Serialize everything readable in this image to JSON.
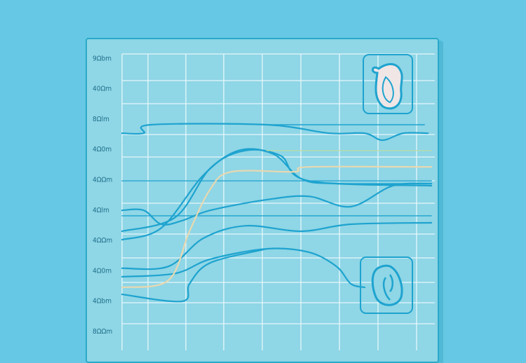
{
  "chart_data": {
    "type": "line",
    "title": "",
    "xlabel": "",
    "ylabel": "",
    "y_tick_labels": [
      "9Ωbm",
      "40Ωm",
      "8Ωlm",
      "4Ω0m",
      "4ΩΩm",
      "4Ωlm",
      "4ΩΩm",
      "4Ω0m",
      "4Ωbm",
      "8ΩΩm"
    ],
    "xlim": [
      0,
      8
    ],
    "ylim": [
      0,
      9
    ],
    "grid": true,
    "colors": {
      "background": "#66c8e4",
      "panel": "#8fd6e6",
      "grid": "#e6f7fb",
      "line": "#1ea3cf",
      "beige": "#e8d8b0",
      "green": "#b8dca8"
    },
    "series": [
      {
        "color": "#1ea3cf",
        "x": [
          0,
          0.56,
          0.75,
          3.75,
          5.38,
          6.29,
          6.75,
          7.29,
          7.93
        ],
        "y": [
          6.51,
          6.51,
          6.79,
          6.79,
          6.51,
          6.51,
          6.28,
          6.51,
          6.51
        ]
      },
      {
        "color": "#1ea3cf",
        "x": [
          3.75,
          7.84
        ],
        "y": [
          6.79,
          6.79
        ]
      },
      {
        "color": "#1ea3cf",
        "x": [
          0,
          1.02,
          2.11,
          3.02,
          3.93,
          4.65,
          5.56,
          8.02
        ],
        "y": [
          3.0,
          3.39,
          5.13,
          5.94,
          5.82,
          5.01,
          4.85,
          4.85
        ]
      },
      {
        "color": "#1ea3cf",
        "x": [
          0,
          1.38,
          2.29,
          3.2,
          4.11,
          4.84,
          8.02
        ],
        "y": [
          3.28,
          3.74,
          5.36,
          5.94,
          5.77,
          4.94,
          4.78
        ]
      },
      {
        "color": "#1ea3cf",
        "x": [
          0,
          8.02
        ],
        "y": [
          4.94,
          4.94
        ]
      },
      {
        "color": "#1ea3cf",
        "x": [
          0,
          0.56,
          1.02,
          1.56,
          2.29,
          3.75,
          4.84,
          5.93,
          7.02,
          8.02
        ],
        "y": [
          3.97,
          3.97,
          3.51,
          3.63,
          3.97,
          4.32,
          4.43,
          4.09,
          4.78,
          4.85
        ]
      },
      {
        "color": "#1ea3cf",
        "x": [
          0,
          8.02
        ],
        "y": [
          3.79,
          3.79
        ]
      },
      {
        "color": "#1ea3cf",
        "x": [
          0,
          1.2,
          2.11,
          3.2,
          4.65,
          5.93,
          8.02
        ],
        "y": [
          2.06,
          2.12,
          3.05,
          3.46,
          3.28,
          3.51,
          3.56
        ]
      },
      {
        "color": "#1ea3cf",
        "x": [
          0,
          1.38,
          2.29,
          3.75,
          4.84,
          5.56,
          5.93,
          6.29
        ],
        "y": [
          1.78,
          1.89,
          2.36,
          2.7,
          2.59,
          2.12,
          1.55,
          1.43
        ]
      },
      {
        "color": "#1ea3cf",
        "x": [
          0,
          1.56,
          1.75,
          2.29,
          3.75
        ],
        "y": [
          1.2,
          0.97,
          1.55,
          2.24,
          2.7
        ]
      },
      {
        "color": "#e8d8b0",
        "x": [
          0,
          1.2,
          1.75,
          2.29,
          2.84,
          4.47,
          4.84,
          8.02
        ],
        "y": [
          1.43,
          1.66,
          3.28,
          4.67,
          5.24,
          5.24,
          5.4,
          5.4
        ]
      },
      {
        "color": "#b8dca8",
        "x": [
          3.75,
          8.02
        ],
        "y": [
          5.94,
          5.94
        ]
      }
    ]
  },
  "icons": [
    "kidney-icon",
    "stomach-icon"
  ]
}
